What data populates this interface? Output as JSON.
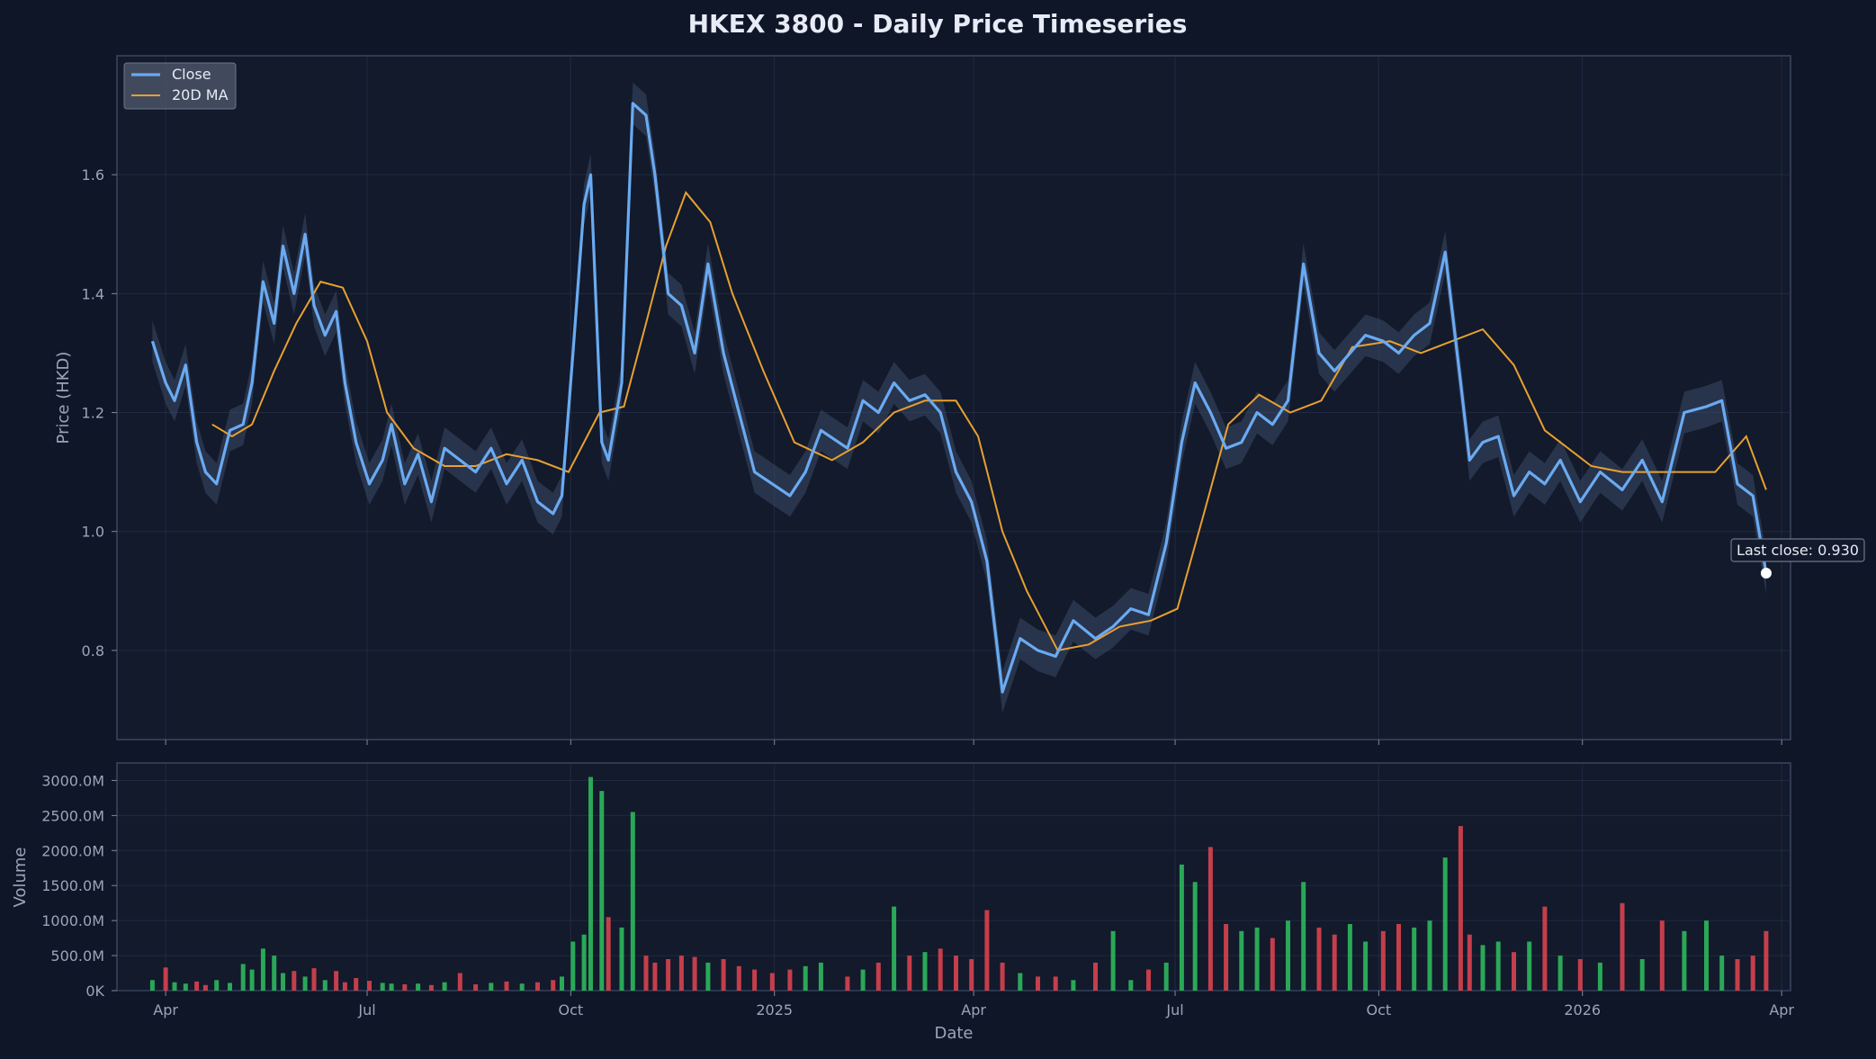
{
  "chart_data": [
    {
      "type": "line",
      "title": "HKEX 3800 - Daily Price Timeseries",
      "xlabel": "",
      "ylabel": "Price (HKD)",
      "ylim": [
        0.65,
        1.8
      ],
      "yticks": [
        0.8,
        1.0,
        1.2,
        1.4,
        1.6
      ],
      "ytick_labels": [
        "0.8",
        "1.0",
        "1.2",
        "1.4",
        "1.6"
      ],
      "x_range": [
        "2024-03-10",
        "2026-04-05"
      ],
      "grid": true,
      "legend": {
        "position": "top-left",
        "entries": [
          "Close",
          "20D MA"
        ]
      },
      "colors": {
        "close": "#6aaaf2",
        "ma": "#e8a030",
        "band": "#3b4a66",
        "marker": "#ffffff"
      },
      "series": [
        {
          "name": "Close",
          "x": [
            "2024-03-26",
            "2024-04-01",
            "2024-04-05",
            "2024-04-10",
            "2024-04-15",
            "2024-04-19",
            "2024-04-24",
            "2024-04-30",
            "2024-05-06",
            "2024-05-10",
            "2024-05-15",
            "2024-05-20",
            "2024-05-24",
            "2024-05-29",
            "2024-06-03",
            "2024-06-07",
            "2024-06-12",
            "2024-06-17",
            "2024-06-21",
            "2024-06-26",
            "2024-07-02",
            "2024-07-08",
            "2024-07-12",
            "2024-07-18",
            "2024-07-24",
            "2024-07-30",
            "2024-08-05",
            "2024-08-12",
            "2024-08-19",
            "2024-08-26",
            "2024-09-02",
            "2024-09-09",
            "2024-09-16",
            "2024-09-23",
            "2024-09-27",
            "2024-10-02",
            "2024-10-07",
            "2024-10-10",
            "2024-10-15",
            "2024-10-18",
            "2024-10-24",
            "2024-10-29",
            "2024-11-04",
            "2024-11-08",
            "2024-11-14",
            "2024-11-20",
            "2024-11-26",
            "2024-12-02",
            "2024-12-09",
            "2024-12-16",
            "2024-12-23",
            "2024-12-31",
            "2025-01-08",
            "2025-01-15",
            "2025-01-22",
            "2025-02-03",
            "2025-02-10",
            "2025-02-17",
            "2025-02-24",
            "2025-03-03",
            "2025-03-10",
            "2025-03-17",
            "2025-03-24",
            "2025-03-31",
            "2025-04-07",
            "2025-04-14",
            "2025-04-22",
            "2025-04-30",
            "2025-05-08",
            "2025-05-16",
            "2025-05-26",
            "2025-06-03",
            "2025-06-11",
            "2025-06-19",
            "2025-06-27",
            "2025-07-04",
            "2025-07-10",
            "2025-07-17",
            "2025-07-24",
            "2025-07-31",
            "2025-08-07",
            "2025-08-14",
            "2025-08-21",
            "2025-08-28",
            "2025-09-04",
            "2025-09-11",
            "2025-09-18",
            "2025-09-25",
            "2025-10-03",
            "2025-10-10",
            "2025-10-17",
            "2025-10-24",
            "2025-10-31",
            "2025-11-07",
            "2025-11-11",
            "2025-11-17",
            "2025-11-24",
            "2025-12-01",
            "2025-12-08",
            "2025-12-15",
            "2025-12-22",
            "2025-12-31",
            "2026-01-09",
            "2026-01-19",
            "2026-01-28",
            "2026-02-06",
            "2026-02-16",
            "2026-02-26",
            "2026-03-05",
            "2026-03-12",
            "2026-03-19",
            "2026-03-25"
          ],
          "y": [
            1.32,
            1.25,
            1.22,
            1.28,
            1.15,
            1.1,
            1.08,
            1.17,
            1.18,
            1.25,
            1.42,
            1.35,
            1.48,
            1.4,
            1.5,
            1.38,
            1.33,
            1.37,
            1.25,
            1.15,
            1.08,
            1.12,
            1.18,
            1.08,
            1.13,
            1.05,
            1.14,
            1.12,
            1.1,
            1.14,
            1.08,
            1.12,
            1.05,
            1.03,
            1.06,
            1.3,
            1.55,
            1.6,
            1.15,
            1.12,
            1.25,
            1.72,
            1.7,
            1.6,
            1.4,
            1.38,
            1.3,
            1.45,
            1.3,
            1.2,
            1.1,
            1.08,
            1.06,
            1.1,
            1.17,
            1.14,
            1.22,
            1.2,
            1.25,
            1.22,
            1.23,
            1.2,
            1.1,
            1.05,
            0.95,
            0.73,
            0.82,
            0.8,
            0.79,
            0.85,
            0.82,
            0.84,
            0.87,
            0.86,
            0.98,
            1.15,
            1.25,
            1.2,
            1.14,
            1.15,
            1.2,
            1.18,
            1.22,
            1.45,
            1.3,
            1.27,
            1.3,
            1.33,
            1.32,
            1.3,
            1.33,
            1.35,
            1.47,
            1.25,
            1.12,
            1.15,
            1.16,
            1.06,
            1.1,
            1.08,
            1.12,
            1.05,
            1.1,
            1.07,
            1.12,
            1.05,
            1.2,
            1.21,
            1.22,
            1.08,
            1.06,
            0.93
          ]
        },
        {
          "name": "20D MA",
          "x": [
            "2024-04-22",
            "2024-05-01",
            "2024-05-10",
            "2024-05-20",
            "2024-05-30",
            "2024-06-10",
            "2024-06-20",
            "2024-07-01",
            "2024-07-10",
            "2024-07-22",
            "2024-08-05",
            "2024-08-19",
            "2024-09-02",
            "2024-09-16",
            "2024-09-30",
            "2024-10-14",
            "2024-10-25",
            "2024-11-04",
            "2024-11-13",
            "2024-11-22",
            "2024-12-03",
            "2024-12-13",
            "2024-12-27",
            "2025-01-10",
            "2025-01-27",
            "2025-02-10",
            "2025-02-24",
            "2025-03-10",
            "2025-03-24",
            "2025-04-03",
            "2025-04-14",
            "2025-04-25",
            "2025-05-09",
            "2025-05-23",
            "2025-06-06",
            "2025-06-20",
            "2025-07-02",
            "2025-07-14",
            "2025-07-25",
            "2025-08-08",
            "2025-08-22",
            "2025-09-05",
            "2025-09-19",
            "2025-10-06",
            "2025-10-20",
            "2025-11-03",
            "2025-11-17",
            "2025-12-01",
            "2025-12-15",
            "2026-01-05",
            "2026-01-19",
            "2026-02-02",
            "2026-02-16",
            "2026-03-02",
            "2026-03-16",
            "2026-03-25"
          ],
          "y": [
            1.18,
            1.16,
            1.18,
            1.27,
            1.35,
            1.42,
            1.41,
            1.32,
            1.2,
            1.14,
            1.11,
            1.11,
            1.13,
            1.12,
            1.1,
            1.2,
            1.21,
            1.35,
            1.48,
            1.57,
            1.52,
            1.4,
            1.27,
            1.15,
            1.12,
            1.15,
            1.2,
            1.22,
            1.22,
            1.16,
            1.0,
            0.9,
            0.8,
            0.81,
            0.84,
            0.85,
            0.87,
            1.03,
            1.18,
            1.23,
            1.2,
            1.22,
            1.31,
            1.32,
            1.3,
            1.32,
            1.34,
            1.28,
            1.17,
            1.11,
            1.1,
            1.1,
            1.1,
            1.1,
            1.16,
            1.07
          ]
        }
      ],
      "annotations": [
        {
          "text": "Last close: 0.930",
          "x": "2026-03-25",
          "y": 0.93
        }
      ]
    },
    {
      "type": "bar",
      "title": "",
      "xlabel": "Date",
      "ylabel": "Volume",
      "ylim": [
        0,
        3250
      ],
      "yticks": [
        0,
        500,
        1000,
        1500,
        2000,
        2500,
        3000
      ],
      "ytick_labels": [
        "0K",
        "500.0M",
        "1000.0M",
        "1500.0M",
        "2000.0M",
        "2500.0M",
        "3000.0M"
      ],
      "x_range": [
        "2024-03-10",
        "2026-04-05"
      ],
      "xticks": [
        "2024-04-01",
        "2024-07-01",
        "2024-10-01",
        "2025-01-01",
        "2025-04-01",
        "2025-07-01",
        "2025-10-01",
        "2026-01-01",
        "2026-04-01"
      ],
      "xtick_labels": [
        "Apr",
        "Jul",
        "Oct",
        "2025",
        "Apr",
        "Jul",
        "Oct",
        "2026",
        "Apr"
      ],
      "grid": true,
      "colors": {
        "up": "#2eb85c",
        "down": "#d9434f"
      },
      "volume_unit": "M",
      "x": [
        "2024-03-26",
        "2024-04-01",
        "2024-04-05",
        "2024-04-10",
        "2024-04-15",
        "2024-04-19",
        "2024-04-24",
        "2024-04-30",
        "2024-05-06",
        "2024-05-10",
        "2024-05-15",
        "2024-05-20",
        "2024-05-24",
        "2024-05-29",
        "2024-06-03",
        "2024-06-07",
        "2024-06-12",
        "2024-06-17",
        "2024-06-21",
        "2024-06-26",
        "2024-07-02",
        "2024-07-08",
        "2024-07-12",
        "2024-07-18",
        "2024-07-24",
        "2024-07-30",
        "2024-08-05",
        "2024-08-12",
        "2024-08-19",
        "2024-08-26",
        "2024-09-02",
        "2024-09-09",
        "2024-09-16",
        "2024-09-23",
        "2024-09-27",
        "2024-10-02",
        "2024-10-07",
        "2024-10-10",
        "2024-10-15",
        "2024-10-18",
        "2024-10-24",
        "2024-10-29",
        "2024-11-04",
        "2024-11-08",
        "2024-11-14",
        "2024-11-20",
        "2024-11-26",
        "2024-12-02",
        "2024-12-09",
        "2024-12-16",
        "2024-12-23",
        "2024-12-31",
        "2025-01-08",
        "2025-01-15",
        "2025-01-22",
        "2025-02-03",
        "2025-02-10",
        "2025-02-17",
        "2025-02-24",
        "2025-03-03",
        "2025-03-10",
        "2025-03-17",
        "2025-03-24",
        "2025-03-31",
        "2025-04-07",
        "2025-04-14",
        "2025-04-22",
        "2025-04-30",
        "2025-05-08",
        "2025-05-16",
        "2025-05-26",
        "2025-06-03",
        "2025-06-11",
        "2025-06-19",
        "2025-06-27",
        "2025-07-04",
        "2025-07-10",
        "2025-07-17",
        "2025-07-24",
        "2025-07-31",
        "2025-08-07",
        "2025-08-14",
        "2025-08-21",
        "2025-08-28",
        "2025-09-04",
        "2025-09-11",
        "2025-09-18",
        "2025-09-25",
        "2025-10-03",
        "2025-10-10",
        "2025-10-17",
        "2025-10-24",
        "2025-10-31",
        "2025-11-07",
        "2025-11-11",
        "2025-11-17",
        "2025-11-24",
        "2025-12-01",
        "2025-12-08",
        "2025-12-15",
        "2025-12-22",
        "2025-12-31",
        "2026-01-09",
        "2026-01-19",
        "2026-01-28",
        "2026-02-06",
        "2026-02-16",
        "2026-02-26",
        "2026-03-05",
        "2026-03-12",
        "2026-03-19",
        "2026-03-25"
      ],
      "values": [
        150,
        330,
        120,
        100,
        130,
        80,
        150,
        110,
        380,
        300,
        600,
        500,
        250,
        280,
        200,
        320,
        150,
        280,
        120,
        180,
        140,
        110,
        100,
        90,
        100,
        80,
        120,
        250,
        90,
        110,
        130,
        100,
        120,
        150,
        200,
        700,
        800,
        3050,
        2850,
        1050,
        900,
        2550,
        500,
        400,
        450,
        500,
        480,
        400,
        450,
        350,
        300,
        250,
        300,
        350,
        400,
        200,
        300,
        400,
        1200,
        500,
        550,
        600,
        500,
        450,
        1150,
        400,
        250,
        200,
        200,
        150,
        400,
        850,
        150,
        300,
        400,
        1800,
        1550,
        2050,
        950,
        850,
        900,
        750,
        1000,
        1550,
        900,
        800,
        950,
        700,
        850,
        950,
        900,
        1000,
        1900,
        2350,
        800,
        650,
        700,
        550,
        700,
        1200,
        500,
        450,
        400,
        1250,
        450,
        1000,
        850,
        1000,
        500,
        450,
        500,
        850
      ],
      "directions": [
        "up",
        "down",
        "up",
        "up",
        "down",
        "down",
        "up",
        "up",
        "up",
        "up",
        "up",
        "up",
        "up",
        "down",
        "up",
        "down",
        "up",
        "down",
        "down",
        "down",
        "down",
        "up",
        "up",
        "down",
        "up",
        "down",
        "up",
        "down",
        "down",
        "up",
        "down",
        "up",
        "down",
        "down",
        "up",
        "up",
        "up",
        "up",
        "up",
        "down",
        "up",
        "up",
        "down",
        "down",
        "down",
        "down",
        "down",
        "up",
        "down",
        "down",
        "down",
        "down",
        "down",
        "up",
        "up",
        "down",
        "up",
        "down",
        "up",
        "down",
        "up",
        "down",
        "down",
        "down",
        "down",
        "down",
        "up",
        "down",
        "down",
        "up",
        "down",
        "up",
        "up",
        "down",
        "up",
        "up",
        "up",
        "down",
        "down",
        "up",
        "up",
        "down",
        "up",
        "up",
        "down",
        "down",
        "up",
        "up",
        "down",
        "down",
        "up",
        "up",
        "up",
        "down",
        "down",
        "up",
        "up",
        "down",
        "up",
        "down",
        "up",
        "down",
        "up",
        "down",
        "up",
        "down",
        "up",
        "up",
        "up",
        "down",
        "down",
        "down"
      ]
    }
  ]
}
